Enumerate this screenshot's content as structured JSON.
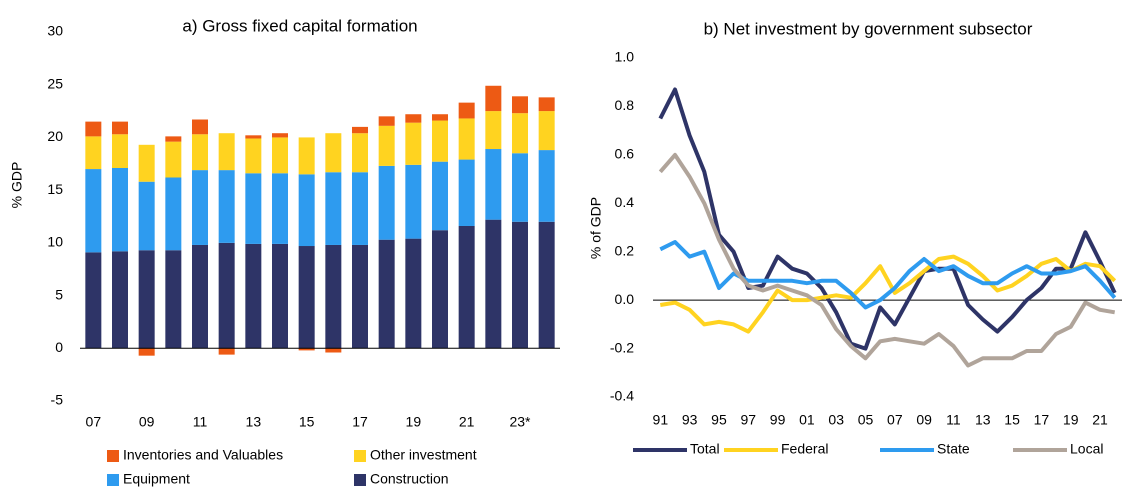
{
  "chart_data": [
    {
      "type": "bar",
      "title": "a) Gross fixed capital formation",
      "y_label": "% GDP",
      "categories": [
        "07",
        null,
        "09",
        null,
        "11",
        null,
        "13",
        null,
        "15",
        null,
        "17",
        null,
        "19",
        null,
        "21",
        null,
        "23*",
        null
      ],
      "series": [
        {
          "name": "Inventories and Valuables",
          "color": "#ed5a14",
          "values": [
            1.4,
            1.2,
            -0.7,
            0.5,
            1.4,
            -0.6,
            0.3,
            0.4,
            -0.2,
            -0.4,
            0.6,
            0.9,
            0.8,
            0.6,
            1.5,
            2.4,
            1.6,
            1.3
          ]
        },
        {
          "name": "Other investment",
          "color": "#ffd320",
          "values": [
            3.1,
            3.2,
            3.5,
            3.4,
            3.4,
            3.5,
            3.3,
            3.4,
            3.5,
            3.7,
            3.7,
            3.8,
            4.0,
            3.9,
            3.9,
            3.6,
            3.8,
            3.7
          ]
        },
        {
          "name": "Equipment",
          "color": "#2e9bef",
          "values": [
            7.9,
            7.9,
            6.5,
            6.9,
            7.1,
            6.9,
            6.7,
            6.7,
            6.8,
            6.9,
            6.9,
            7.0,
            7.0,
            6.5,
            6.3,
            6.7,
            6.5,
            6.8
          ]
        },
        {
          "name": "Construction",
          "color": "#2e3467",
          "values": [
            9.1,
            9.2,
            9.3,
            9.3,
            9.8,
            10.0,
            9.9,
            9.9,
            9.7,
            9.8,
            9.8,
            10.3,
            10.4,
            11.2,
            11.6,
            12.2,
            12.0,
            12.0
          ]
        }
      ],
      "ylim": [
        -5,
        30
      ],
      "yticks": [
        -5,
        0,
        5,
        10,
        15,
        20,
        25,
        30
      ],
      "stacked": true
    },
    {
      "type": "line",
      "title": "b) Net investment by government subsector",
      "y_label": "% of GDP",
      "categories": [
        "91",
        null,
        "93",
        null,
        "95",
        null,
        "97",
        null,
        "99",
        null,
        "01",
        null,
        "03",
        null,
        "05",
        null,
        "07",
        null,
        "09",
        null,
        "11",
        null,
        "13",
        null,
        "15",
        null,
        "17",
        null,
        "19",
        null,
        "21",
        null
      ],
      "series": [
        {
          "name": "Total",
          "color": "#2e3467",
          "values": [
            0.75,
            0.87,
            0.68,
            0.53,
            0.27,
            0.2,
            0.05,
            0.06,
            0.18,
            0.13,
            0.11,
            0.05,
            -0.05,
            -0.18,
            -0.2,
            -0.03,
            -0.1,
            0.01,
            0.12,
            0.13,
            0.13,
            -0.02,
            -0.08,
            -0.13,
            -0.07,
            0.0,
            0.05,
            0.13,
            0.13,
            0.28,
            0.16,
            0.03
          ]
        },
        {
          "name": "Federal",
          "color": "#ffd320",
          "values": [
            -0.02,
            -0.01,
            -0.04,
            -0.1,
            -0.09,
            -0.1,
            -0.13,
            -0.05,
            0.04,
            0.0,
            0.0,
            0.01,
            0.02,
            0.01,
            0.07,
            0.14,
            0.03,
            0.07,
            0.12,
            0.17,
            0.18,
            0.15,
            0.1,
            0.04,
            0.06,
            0.1,
            0.15,
            0.17,
            0.12,
            0.15,
            0.14,
            0.08
          ]
        },
        {
          "name": "State",
          "color": "#2e9bef",
          "values": [
            0.21,
            0.24,
            0.18,
            0.2,
            0.05,
            0.11,
            0.08,
            0.08,
            0.08,
            0.08,
            0.07,
            0.08,
            0.08,
            0.03,
            -0.03,
            0.0,
            0.05,
            0.12,
            0.17,
            0.12,
            0.14,
            0.1,
            0.07,
            0.07,
            0.11,
            0.14,
            0.11,
            0.11,
            0.12,
            0.14,
            0.08,
            0.01
          ]
        },
        {
          "name": "Local",
          "color": "#b0a49a",
          "values": [
            0.53,
            0.6,
            0.51,
            0.4,
            0.25,
            0.13,
            0.06,
            0.04,
            0.06,
            0.04,
            0.02,
            -0.02,
            -0.12,
            -0.19,
            -0.24,
            -0.17,
            -0.16,
            -0.17,
            -0.18,
            -0.14,
            -0.19,
            -0.27,
            -0.24,
            -0.24,
            -0.24,
            -0.21,
            -0.21,
            -0.14,
            -0.11,
            -0.01,
            -0.04,
            -0.05
          ]
        }
      ],
      "ylim": [
        -0.4,
        1.0
      ],
      "yticks": [
        -0.4,
        -0.2,
        {
          "value": 0,
          "label": "0.0"
        },
        0.2,
        0.4,
        0.6,
        0.8,
        {
          "value": 1,
          "label": "1.0"
        }
      ]
    }
  ]
}
